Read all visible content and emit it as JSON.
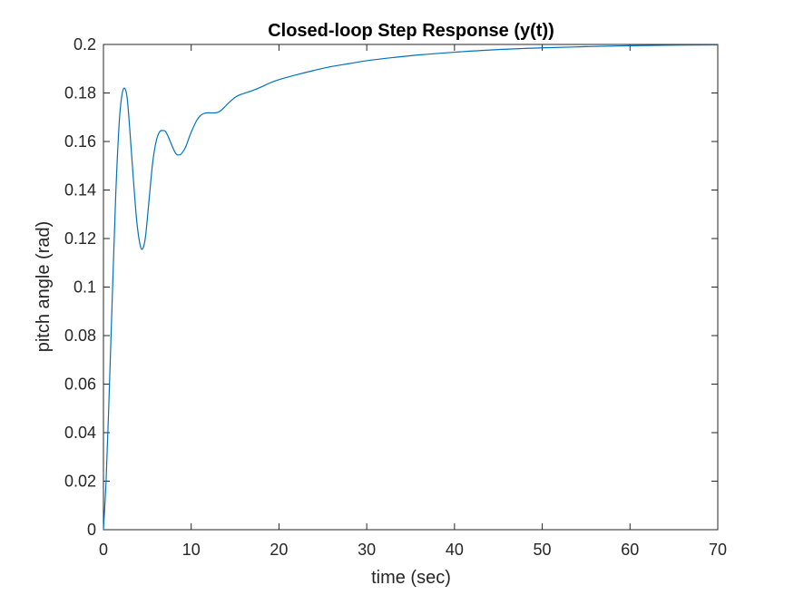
{
  "chart_data": {
    "type": "line",
    "title": "Closed-loop Step Response (y(t))",
    "xlabel": "time (sec)",
    "ylabel": "pitch angle (rad)",
    "xlim": [
      0,
      70
    ],
    "ylim": [
      0,
      0.2
    ],
    "x_ticks": [
      "0",
      "10",
      "20",
      "30",
      "40",
      "50",
      "60",
      "70"
    ],
    "y_ticks": [
      "0",
      "0.02",
      "0.04",
      "0.06",
      "0.08",
      "0.1",
      "0.12",
      "0.14",
      "0.16",
      "0.18",
      "0.2"
    ],
    "grid": false,
    "line_color": "#0072bd",
    "series": [
      {
        "x": [
          0,
          0.3,
          0.6,
          1.0,
          1.4,
          1.8,
          2.1,
          2.4,
          2.7,
          3.0,
          3.4,
          3.8,
          4.2,
          4.5,
          4.8,
          5.2,
          5.6,
          6.0,
          6.4,
          6.8,
          7.1,
          7.5,
          7.9,
          8.3,
          8.7,
          9.0,
          9.4,
          9.8,
          10.2,
          10.6,
          11.0,
          11.4,
          11.8,
          12.2,
          12.6,
          13.0,
          13.4,
          13.8,
          14.2,
          14.6,
          15.0,
          15.5,
          16.0,
          16.5,
          17.0,
          18.0,
          19.0,
          20.0,
          22.0,
          24.0,
          26.0,
          28.0,
          30.0,
          33.0,
          36.0,
          40.0,
          45.0,
          50.0,
          55.0,
          60.0,
          65.0,
          70.0
        ],
        "y": [
          0,
          0.02,
          0.05,
          0.095,
          0.138,
          0.168,
          0.179,
          0.182,
          0.178,
          0.165,
          0.145,
          0.127,
          0.117,
          0.116,
          0.121,
          0.136,
          0.151,
          0.16,
          0.164,
          0.1645,
          0.164,
          0.161,
          0.1575,
          0.1548,
          0.1545,
          0.1555,
          0.158,
          0.162,
          0.1655,
          0.1685,
          0.1705,
          0.1715,
          0.1718,
          0.1718,
          0.1718,
          0.172,
          0.1728,
          0.1742,
          0.1757,
          0.177,
          0.1782,
          0.1792,
          0.1798,
          0.1804,
          0.181,
          0.1825,
          0.1842,
          0.1855,
          0.1875,
          0.1893,
          0.1909,
          0.1921,
          0.1933,
          0.1946,
          0.1957,
          0.1968,
          0.1979,
          0.1986,
          0.1991,
          0.1995,
          0.1997,
          0.1998
        ]
      }
    ]
  }
}
